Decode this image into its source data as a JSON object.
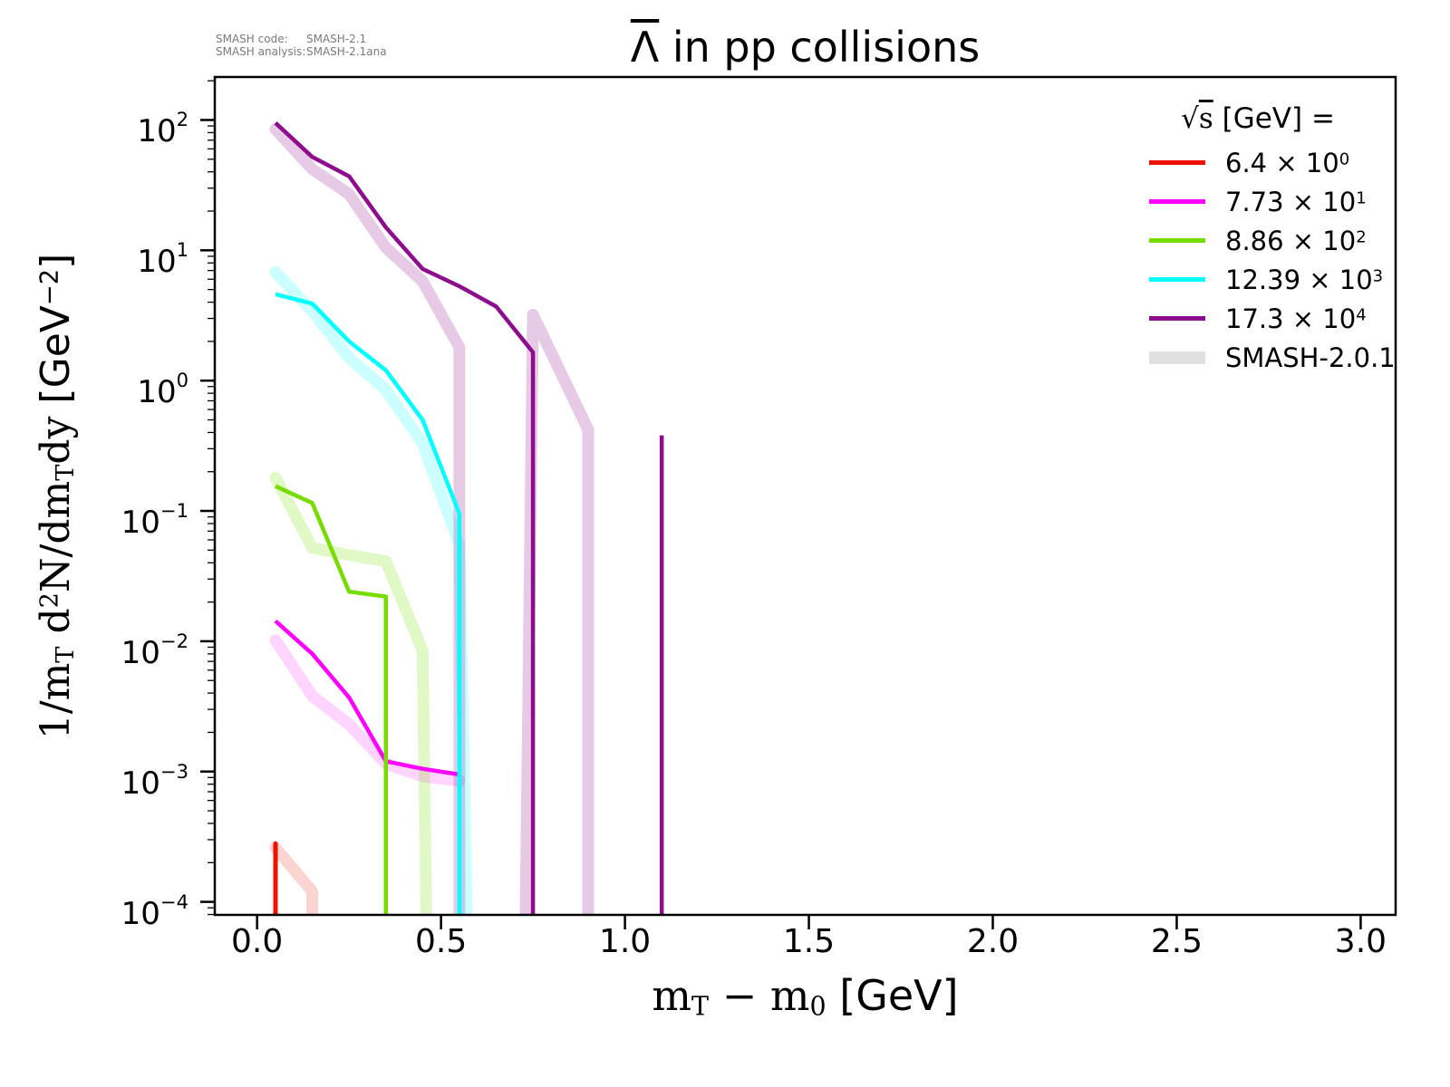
{
  "page": {
    "background": "#ffffff"
  },
  "annotation": {
    "lines": [
      {
        "key": "SMASH code:",
        "value": "SMASH-2.1"
      },
      {
        "key": "SMASH analysis:",
        "value": "SMASH-2.1ana"
      }
    ]
  },
  "title": {
    "plain": "Λ̄ in pp collisions",
    "tokens": [
      {
        "k": "sol",
        "t": "Λ"
      },
      {
        "k": "s",
        "t": " in pp collisions"
      }
    ]
  },
  "axes": {
    "x_label_plain": "m_T − m_0 [GeV]",
    "x_label_tokens": [
      {
        "k": "t",
        "t": "m"
      },
      {
        "k": "sub",
        "t": "T"
      },
      {
        "k": "t",
        "t": " − m"
      },
      {
        "k": "sub",
        "t": "0"
      },
      {
        "k": "s",
        "t": " [GeV]"
      }
    ],
    "y_label_plain": "1/m_T d²N/dm_Tdy [GeV⁻²]",
    "y_label_tokens": [
      {
        "k": "t",
        "t": "1/m"
      },
      {
        "k": "sub",
        "t": "T"
      },
      {
        "k": "t",
        "t": " d"
      },
      {
        "k": "sup",
        "t": "2"
      },
      {
        "k": "t",
        "t": "N/dm"
      },
      {
        "k": "sub",
        "t": "T"
      },
      {
        "k": "t",
        "t": "dy "
      },
      {
        "k": "s",
        "t": "[GeV"
      },
      {
        "k": "ssup",
        "t": "−2"
      },
      {
        "k": "s",
        "t": "]"
      }
    ]
  },
  "legend": {
    "title_plain": "√s  [GeV] =",
    "title_tokens": [
      {
        "k": "s",
        "t": "√"
      },
      {
        "k": "olt",
        "t": "s"
      },
      {
        "k": "s",
        "t": "  [GeV] ="
      }
    ],
    "entries": [
      {
        "coef": "6.4",
        "exp": "0",
        "color": "#ee1100",
        "thick": false
      },
      {
        "coef": "7.73",
        "exp": "1",
        "color": "#ff00ff",
        "thick": false
      },
      {
        "coef": "8.86",
        "exp": "2",
        "color": "#77dd00",
        "thick": false
      },
      {
        "coef": "12.39",
        "exp": "3",
        "color": "#00ffff",
        "thick": false
      },
      {
        "coef": "17.3",
        "exp": "4",
        "color": "#8e0d8e",
        "thick": false
      },
      {
        "text": "SMASH-2.0.1",
        "color": "#e0e0e0",
        "thick": true
      }
    ]
  },
  "chart_data": {
    "type": "line",
    "title": "Λ̄ in pp collisions",
    "xlabel": "m_T − m_0 [GeV]",
    "ylabel": "1/m_T d²N/dm_Tdy [GeV⁻²]",
    "grid": false,
    "legend_position": "upper right",
    "x_axis": {
      "min": -0.115,
      "max": 3.095,
      "ticks": [
        {
          "label": "0.0",
          "value": 0.0
        },
        {
          "label": "0.5",
          "value": 0.5
        },
        {
          "label": "1.0",
          "value": 1.0
        },
        {
          "label": "1.5",
          "value": 1.5
        },
        {
          "label": "2.0",
          "value": 2.0
        },
        {
          "label": "2.5",
          "value": 2.5
        },
        {
          "label": "3.0",
          "value": 3.0
        }
      ]
    },
    "y_axis": {
      "scale": "log",
      "min_exp": -4.1,
      "max_exp": 2.33,
      "tick_exponents": [
        2,
        1,
        0,
        -1,
        -2,
        -3,
        -4
      ]
    },
    "floor_value": 8e-05,
    "style": {
      "bright_width": 4.5,
      "band_width": 13,
      "spike_width": 5
    },
    "series": [
      {
        "id": "sqrt-s-6.4e0",
        "label": "6.4 × 10⁰",
        "sqrt_s_GeV": 6.4,
        "color": "#ee1100",
        "rise": 0.05,
        "points": [
          [
            0.05,
            0.00028
          ]
        ],
        "drop": 0.05,
        "spike": true
      },
      {
        "id": "sqrt-s-7.73e1",
        "label": "7.73 × 10¹",
        "sqrt_s_GeV": 77.3,
        "color": "#ff00ff",
        "rise": null,
        "points": [
          [
            0.05,
            0.0143
          ],
          [
            0.15,
            0.008
          ],
          [
            0.25,
            0.0037
          ],
          [
            0.35,
            0.0012
          ],
          [
            0.45,
            0.00105
          ],
          [
            0.55,
            0.00095
          ]
        ],
        "drop": null
      },
      {
        "id": "sqrt-s-8.86e2",
        "label": "8.86 × 10²",
        "sqrt_s_GeV": 886,
        "color": "#77dd00",
        "rise": null,
        "points": [
          [
            0.05,
            0.155
          ],
          [
            0.15,
            0.115
          ],
          [
            0.25,
            0.024
          ],
          [
            0.35,
            0.022
          ]
        ],
        "drop": 0.35
      },
      {
        "id": "sqrt-s-12.39e3",
        "label": "12.39 × 10³",
        "sqrt_s_GeV": 12390,
        "color": "#00ffff",
        "rise": null,
        "points": [
          [
            0.05,
            4.6
          ],
          [
            0.15,
            3.9
          ],
          [
            0.25,
            2.0
          ],
          [
            0.35,
            1.2
          ],
          [
            0.45,
            0.5
          ],
          [
            0.55,
            0.095
          ]
        ],
        "drop": 0.55
      },
      {
        "id": "sqrt-s-17.3e4",
        "label": "17.3 × 10⁴",
        "sqrt_s_GeV": 173000,
        "color": "#8e0d8e",
        "rise": null,
        "points": [
          [
            0.05,
            95
          ],
          [
            0.15,
            52
          ],
          [
            0.25,
            37
          ],
          [
            0.35,
            15
          ],
          [
            0.45,
            7.2
          ],
          [
            0.55,
            5.3
          ],
          [
            0.65,
            3.7
          ],
          [
            0.75,
            1.65
          ]
        ],
        "drop": 0.75,
        "spikes": [
          [
            1.1,
            0.38
          ]
        ]
      }
    ],
    "smash201_series": [
      {
        "id": "smash201-red",
        "color": "#ee1100",
        "opacity": 0.18,
        "rise": null,
        "points": [
          [
            0.05,
            0.00026
          ],
          [
            0.15,
            0.00012
          ]
        ],
        "drop": 0.15
      },
      {
        "id": "smash201-magenta",
        "color": "#ff00ff",
        "opacity": 0.17,
        "rise": null,
        "points": [
          [
            0.05,
            0.0102
          ],
          [
            0.15,
            0.0038
          ],
          [
            0.25,
            0.0023
          ],
          [
            0.35,
            0.00115
          ],
          [
            0.45,
            0.00092
          ],
          [
            0.55,
            0.00085
          ]
        ],
        "drop": null
      },
      {
        "id": "smash201-green",
        "color": "#77dd00",
        "opacity": 0.22,
        "rise": null,
        "points": [
          [
            0.05,
            0.18
          ],
          [
            0.15,
            0.052
          ],
          [
            0.25,
            0.046
          ],
          [
            0.35,
            0.041
          ],
          [
            0.45,
            0.0085
          ]
        ],
        "drop": 0.46
      },
      {
        "id": "smash201-cyan",
        "color": "#00ffff",
        "opacity": 0.2,
        "rise": null,
        "points": [
          [
            0.05,
            6.8
          ],
          [
            0.15,
            3.4
          ],
          [
            0.25,
            1.5
          ],
          [
            0.35,
            0.85
          ],
          [
            0.45,
            0.33
          ],
          [
            0.55,
            0.055
          ]
        ],
        "drop": 0.57
      },
      {
        "id": "smash201-purple-a",
        "color": "#8e0d8e",
        "opacity": 0.22,
        "rise": null,
        "points": [
          [
            0.05,
            85
          ],
          [
            0.15,
            42
          ],
          [
            0.25,
            27
          ],
          [
            0.35,
            10.5
          ],
          [
            0.45,
            5.8
          ],
          [
            0.55,
            1.8
          ]
        ],
        "drop": 0.55
      },
      {
        "id": "smash201-purple-b",
        "color": "#8e0d8e",
        "opacity": 0.22,
        "rise": 0.73,
        "points": [
          [
            0.75,
            3.2
          ],
          [
            0.9,
            0.42
          ]
        ],
        "drop": 0.9
      }
    ]
  }
}
